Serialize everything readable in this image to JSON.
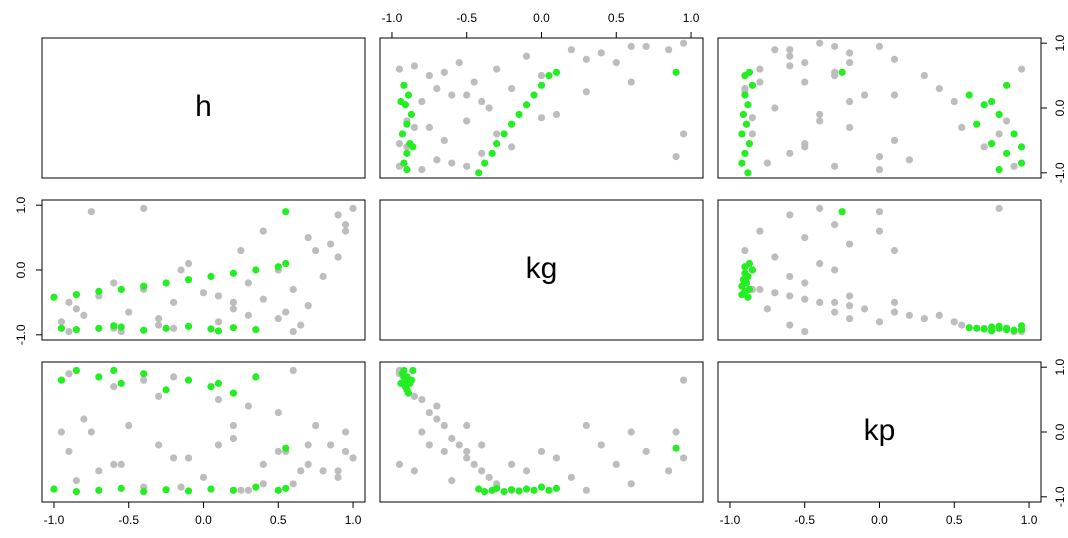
{
  "chart_data": {
    "type": "scatter-matrix",
    "variables": [
      "h",
      "kg",
      "kp"
    ],
    "xlim": [
      -1.08,
      1.08
    ],
    "ylim": [
      -1.08,
      1.08
    ],
    "xticks": [
      {
        "value": -1,
        "label": "-1.0"
      },
      -0.5,
      {
        "value": 0,
        "label": "0.0"
      },
      0.5,
      {
        "value": 1,
        "label": "1.0"
      }
    ],
    "yticks": [
      {
        "value": -1,
        "label": "-1.0"
      },
      {
        "value": 0,
        "label": "0.0"
      },
      {
        "value": 1,
        "label": "1.0"
      }
    ],
    "series": [
      {
        "color": "#bdbdbd",
        "h": [
          -0.9,
          -0.6,
          -0.3,
          0.1,
          0.5,
          -0.8,
          -0.5,
          0.2,
          0.7,
          -0.9,
          -0.2,
          0.4,
          -0.7,
          0.0,
          0.6,
          -0.4,
          0.3,
          -0.85,
          0.8,
          -0.6,
          0.5,
          -0.1,
          0.9,
          0.85,
          0.7,
          0.95,
          0.9,
          1.0,
          -0.75,
          -0.4,
          0.3,
          -0.2,
          0.6,
          0.2,
          -0.95,
          0.75,
          0.55,
          -0.3,
          0.1,
          0.4,
          -0.55,
          0.65,
          -0.15,
          0.25,
          0.95
        ],
        "kg": [
          -0.95,
          -0.9,
          -0.85,
          -0.8,
          -0.75,
          -0.7,
          -0.65,
          -0.6,
          -0.55,
          -0.5,
          -0.5,
          -0.45,
          -0.4,
          -0.35,
          -0.3,
          -0.3,
          -0.2,
          -0.6,
          -0.1,
          -0.2,
          0.0,
          0.1,
          0.2,
          0.4,
          0.5,
          0.7,
          0.85,
          0.95,
          0.9,
          0.95,
          -0.7,
          -0.9,
          -0.95,
          -0.5,
          -0.8,
          0.3,
          -0.65,
          -0.75,
          -0.4,
          0.6,
          -0.95,
          -0.85,
          0.0,
          0.3,
          0.6
        ],
        "kp": [
          0.9,
          0.7,
          0.55,
          0.5,
          0.3,
          0.2,
          0.1,
          -0.1,
          -0.2,
          -0.3,
          -0.4,
          -0.5,
          -0.6,
          -0.7,
          -0.8,
          -0.85,
          -0.9,
          -0.75,
          -0.6,
          -0.5,
          -0.3,
          -0.4,
          -0.7,
          -0.2,
          -0.5,
          -0.3,
          -0.6,
          -0.4,
          0.0,
          0.8,
          0.4,
          0.85,
          0.95,
          0.1,
          0.0,
          0.1,
          -0.3,
          -0.2,
          -0.2,
          -0.8,
          -0.5,
          -0.6,
          -0.85,
          -0.9,
          0.0
        ]
      },
      {
        "color": "#22ee22",
        "h": [
          -0.85,
          -0.7,
          -0.55,
          -0.4,
          -0.25,
          -0.1,
          0.05,
          0.2,
          0.35,
          -0.95,
          -0.6,
          0.1,
          -1.0,
          -0.85,
          -0.7,
          -0.55,
          -0.4,
          -0.25,
          -0.1,
          0.05,
          0.2,
          0.35,
          0.5,
          0.55,
          0.55
        ],
        "kg": [
          -0.92,
          -0.9,
          -0.88,
          -0.93,
          -0.9,
          -0.87,
          -0.91,
          -0.89,
          -0.92,
          -0.9,
          -0.86,
          -0.94,
          -0.42,
          -0.38,
          -0.33,
          -0.3,
          -0.25,
          -0.2,
          -0.15,
          -0.1,
          -0.05,
          0.0,
          0.05,
          0.1,
          0.9
        ],
        "kp": [
          0.95,
          0.85,
          0.75,
          0.9,
          0.65,
          0.8,
          0.7,
          0.6,
          0.85,
          0.8,
          0.95,
          0.75,
          -0.88,
          -0.92,
          -0.9,
          -0.87,
          -0.92,
          -0.89,
          -0.91,
          -0.88,
          -0.9,
          -0.85,
          -0.9,
          -0.87,
          -0.25
        ]
      }
    ]
  }
}
